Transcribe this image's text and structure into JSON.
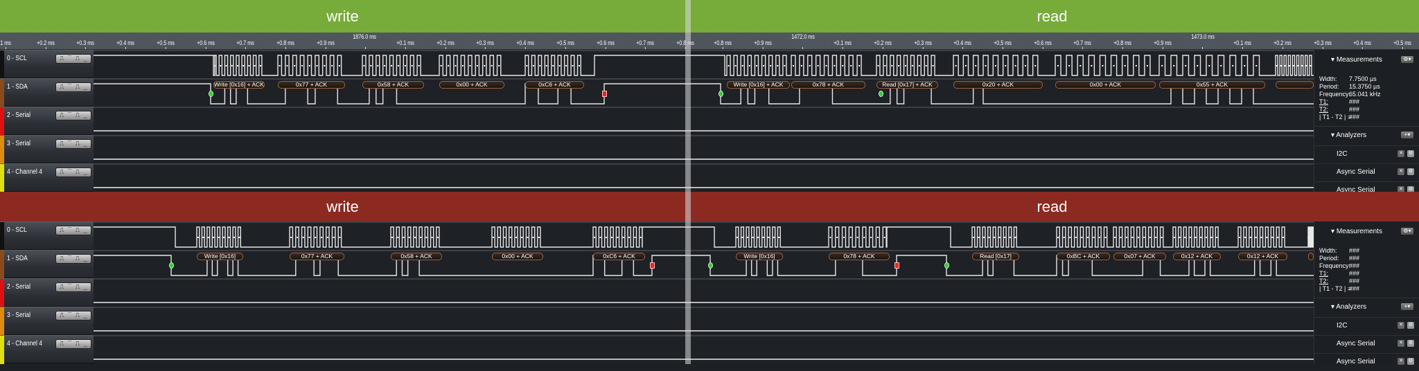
{
  "colors": {
    "write_band": "#77ab3a",
    "read_band_top": "#77ab3a",
    "error_band": "#8c2a22",
    "sda": "#8b4a1a",
    "serial2": "#e01010",
    "serial3": "#e08a10",
    "channel4": "#e0e010",
    "scl": "#111111"
  },
  "top": {
    "bands": [
      "write",
      "read"
    ],
    "ruler": {
      "left_labels": [
        "1 ms",
        "+0.2 ms",
        "+0.3 ms",
        "+0.4 ms",
        "+0.5 ms",
        "+0.6 ms",
        "+0.7 ms",
        "+0.8 ms",
        "+0.9 ms",
        "",
        "+0.1 ms",
        "+0.2 ms",
        "+0.3 ms",
        "+0.4 ms",
        "+0.5 ms",
        "+0.6 ms",
        "+0.7 ms",
        "+0.8 ms"
      ],
      "left_time": "1876.0 ms",
      "right_labels": [
        "+0.8 ms",
        "+0.9 ms",
        "",
        "+0.1 ms",
        "+0.2 ms",
        "+0.3 ms",
        "+0.4 ms",
        "+0.5 ms",
        "+0.6 ms",
        "+0.7 ms",
        "+0.8 ms",
        "+0.9 ms",
        "",
        "+0.1 ms",
        "+0.2 ms",
        "+0.3 ms",
        "+0.4 ms",
        "+0.5 ms"
      ],
      "right_times": [
        "1472.0 ms",
        "1473.0 ms"
      ]
    },
    "frames": [
      "Write [0x16] + ACK",
      "0x77 + ACK",
      "0x58 + ACK",
      "0x00 + ACK",
      "0xC6 + ACK",
      "Write [0x16] + ACK",
      "0x78 + ACK",
      "Read [0x17] + ACK",
      "0x20 + ACK",
      "0x00 + ACK",
      "0x55 + ACK",
      ""
    ],
    "measurements": {
      "title": "Measurements",
      "width_label": "Width:",
      "width": "7.7500 µs",
      "period_label": "Period:",
      "period": "15.3750 µs",
      "freq_label": "Frequency:",
      "freq": "65.041 kHz",
      "t1_label": "T1:",
      "t1": "###",
      "t2_label": "T2:",
      "t2": "###",
      "diff_label": "| T1 - T2 | =",
      "diff": "###"
    },
    "analyzers": {
      "title": "Analyzers",
      "items": [
        "I2C",
        "Async Serial",
        "Async Serial"
      ]
    }
  },
  "bottom": {
    "bands": [
      "write",
      "read"
    ],
    "frames": [
      "Write [0x16]",
      "0x77 + ACK",
      "0x58 + ACK",
      "0x00 + ACK",
      "0xC6 + ACK",
      "Write [0x16]",
      "0x78 + ACK",
      "Read [0x17]",
      "0xBC + ACK",
      "0x07 + ACK",
      "0x12 + ACK",
      "0x12 + ACK",
      ""
    ],
    "measurements": {
      "title": "Measurements",
      "width_label": "Width:",
      "width": "###",
      "period_label": "Period:",
      "period": "###",
      "freq_label": "Frequency:",
      "freq": "###",
      "t1_label": "T1:",
      "t1": "###",
      "t2_label": "T2:",
      "t2": "###",
      "diff_label": "| T1 - T2 | =",
      "diff": "###"
    },
    "analyzers": {
      "title": "Analyzers",
      "items": [
        "I2C",
        "Async Serial",
        "Async Serial"
      ]
    }
  },
  "channels": [
    {
      "name": "0 - SCL",
      "color": "#111111"
    },
    {
      "name": "1 - SDA",
      "color": "#8b4a1a"
    },
    {
      "name": "2 - Serial",
      "color": "#e01010"
    },
    {
      "name": "3 - Serial",
      "color": "#e08a10"
    },
    {
      "name": "4 - Channel 4",
      "color": "#e0e010"
    }
  ],
  "trigger_glyph": "⎍ ‾ ⎍ _"
}
